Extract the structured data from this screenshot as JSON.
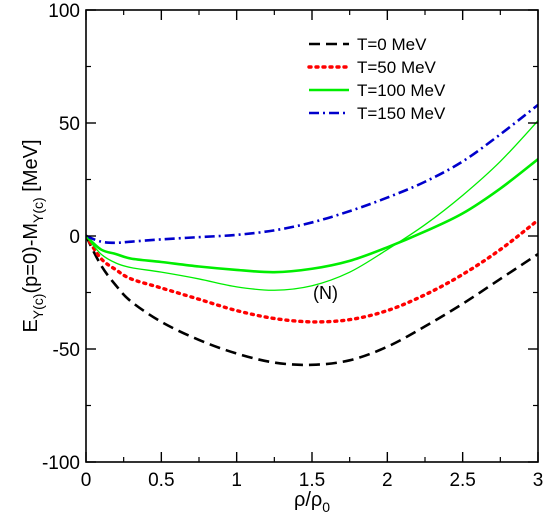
{
  "chart_data": {
    "type": "line",
    "title": "",
    "xlabel": "ρ/ρ0",
    "ylabel": "E_Y(c)(p=0)-M_Y(c) [MeV]",
    "xlim": [
      0,
      3
    ],
    "ylim": [
      -100,
      100
    ],
    "xticks": [
      0,
      0.5,
      1,
      1.5,
      2,
      2.5,
      3
    ],
    "xtick_labels": [
      "0",
      "0.5",
      "1",
      "1.5",
      "2",
      "2.5",
      "3"
    ],
    "yticks": [
      -100,
      -50,
      0,
      50,
      100
    ],
    "ytick_labels": [
      "-100",
      "-50",
      "0",
      "50",
      "100"
    ],
    "grid": false,
    "legend_position": "top-right",
    "annotation": "(N)",
    "series": [
      {
        "name": "T=0 MeV",
        "color": "#000000",
        "style": "dashed",
        "width": "thick",
        "x": [
          0,
          0.1,
          0.2,
          0.3,
          0.5,
          0.75,
          1.0,
          1.25,
          1.5,
          1.75,
          2.0,
          2.25,
          2.5,
          2.75,
          3.0
        ],
        "y": [
          0,
          -13,
          -22,
          -29,
          -38,
          -46,
          -52,
          -56,
          -57,
          -55,
          -49,
          -40,
          -30,
          -19,
          -8
        ]
      },
      {
        "name": "T=50 MeV",
        "color": "#ff0000",
        "style": "dotted",
        "width": "thick",
        "x": [
          0,
          0.1,
          0.2,
          0.3,
          0.5,
          0.75,
          1.0,
          1.25,
          1.5,
          1.75,
          2.0,
          2.25,
          2.5,
          2.75,
          3.0
        ],
        "y": [
          0,
          -10,
          -15,
          -19,
          -23,
          -28,
          -33,
          -36.5,
          -38,
          -37,
          -33,
          -26,
          -17,
          -6,
          7
        ]
      },
      {
        "name": "T=100 MeV",
        "color": "#00ee00",
        "style": "solid",
        "width": "thick",
        "x": [
          0,
          0.1,
          0.2,
          0.3,
          0.5,
          0.75,
          1.0,
          1.25,
          1.5,
          1.75,
          2.0,
          2.25,
          2.5,
          2.75,
          3.0
        ],
        "y": [
          0,
          -6,
          -8,
          -10,
          -11.5,
          -13.5,
          -15,
          -16,
          -14.5,
          -11,
          -5,
          2,
          10,
          21,
          34
        ]
      },
      {
        "name": "T=150 MeV",
        "color": "#0000cc",
        "style": "dash-dot",
        "width": "thick",
        "x": [
          0,
          0.1,
          0.2,
          0.3,
          0.5,
          0.75,
          1.0,
          1.25,
          1.5,
          1.75,
          2.0,
          2.25,
          2.5,
          2.75,
          3.0
        ],
        "y": [
          0,
          -2.5,
          -3,
          -2.5,
          -1.5,
          -0.5,
          0.5,
          2.5,
          6,
          11,
          17,
          24,
          33,
          45,
          58
        ]
      },
      {
        "name": "",
        "color": "#00ee00",
        "style": "solid",
        "width": "thin",
        "x": [
          0,
          0.1,
          0.2,
          0.3,
          0.5,
          0.75,
          1.0,
          1.25,
          1.5,
          1.75,
          2.0,
          2.25,
          2.5,
          2.75,
          3.0
        ],
        "y": [
          0,
          -8,
          -12,
          -14,
          -16,
          -19,
          -22.5,
          -24,
          -22,
          -16,
          -6,
          5,
          18,
          33,
          51
        ]
      }
    ]
  }
}
